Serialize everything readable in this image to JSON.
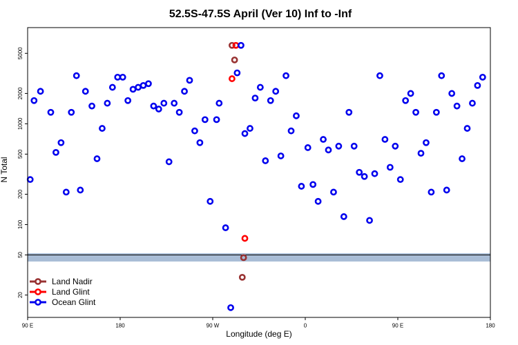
{
  "chart_data": {
    "type": "scatter",
    "title": "52.5S-47.5S April (Ver 10)   Inf to -Inf",
    "xlabel": "Longitude (deg E)",
    "ylabel": "N Total",
    "xlim": [
      0,
      360
    ],
    "ylim_log": [
      12,
      9000
    ],
    "y_scale": "log",
    "x_ticks": [
      {
        "x": 0,
        "label": "90 E"
      },
      {
        "x": 72,
        "label": "180"
      },
      {
        "x": 144,
        "label": "90 W"
      },
      {
        "x": 216,
        "label": "0"
      },
      {
        "x": 288,
        "label": "90 E"
      },
      {
        "x": 360,
        "label": "180"
      }
    ],
    "y_ticks": [
      {
        "y": 20,
        "label": "20"
      },
      {
        "y": 50,
        "label": "50"
      },
      {
        "y": 100,
        "label": "100"
      },
      {
        "y": 200,
        "label": "200"
      },
      {
        "y": 500,
        "label": "500"
      },
      {
        "y": 1000,
        "label": "1000"
      },
      {
        "y": 2000,
        "label": "2000"
      },
      {
        "y": 5000,
        "label": "5000"
      }
    ],
    "band": {
      "y_low": 43,
      "y_high": 52,
      "color": "#a9bdd6"
    },
    "threshold_line": 50,
    "series": [
      {
        "name": "Land Nadir",
        "color": "#993333",
        "points": [
          [
            159,
            6000
          ],
          [
            161,
            4300
          ],
          [
            168,
            47
          ],
          [
            167,
            30
          ]
        ]
      },
      {
        "name": "Land Glint",
        "color": "#ff0000",
        "points": [
          [
            159,
            2800
          ],
          [
            162,
            6000
          ],
          [
            169,
            73
          ]
        ]
      },
      {
        "name": "Ocean Glint",
        "color": "#0000ee",
        "points": [
          [
            2,
            280
          ],
          [
            5,
            1700
          ],
          [
            10,
            2100
          ],
          [
            18,
            1300
          ],
          [
            22,
            520
          ],
          [
            26,
            650
          ],
          [
            30,
            210
          ],
          [
            34,
            1300
          ],
          [
            38,
            3000
          ],
          [
            41,
            220
          ],
          [
            45,
            2100
          ],
          [
            50,
            1500
          ],
          [
            54,
            450
          ],
          [
            58,
            900
          ],
          [
            62,
            1600
          ],
          [
            66,
            2300
          ],
          [
            70,
            2900
          ],
          [
            74,
            2900
          ],
          [
            78,
            1700
          ],
          [
            82,
            2200
          ],
          [
            86,
            2300
          ],
          [
            90,
            2400
          ],
          [
            94,
            2500
          ],
          [
            98,
            1500
          ],
          [
            102,
            1400
          ],
          [
            106,
            1600
          ],
          [
            110,
            420
          ],
          [
            114,
            1600
          ],
          [
            118,
            1300
          ],
          [
            122,
            2100
          ],
          [
            126,
            2700
          ],
          [
            130,
            850
          ],
          [
            134,
            650
          ],
          [
            138,
            1100
          ],
          [
            142,
            170
          ],
          [
            147,
            1100
          ],
          [
            149,
            1600
          ],
          [
            154,
            93
          ],
          [
            158,
            15
          ],
          [
            163,
            3200
          ],
          [
            166,
            6000
          ],
          [
            169,
            800
          ],
          [
            173,
            900
          ],
          [
            177,
            1800
          ],
          [
            181,
            2300
          ],
          [
            185,
            430
          ],
          [
            189,
            1700
          ],
          [
            193,
            2100
          ],
          [
            197,
            480
          ],
          [
            201,
            3000
          ],
          [
            205,
            850
          ],
          [
            209,
            1200
          ],
          [
            213,
            240
          ],
          [
            218,
            580
          ],
          [
            222,
            250
          ],
          [
            226,
            170
          ],
          [
            230,
            700
          ],
          [
            234,
            550
          ],
          [
            238,
            210
          ],
          [
            242,
            600
          ],
          [
            246,
            120
          ],
          [
            250,
            1300
          ],
          [
            254,
            600
          ],
          [
            258,
            330
          ],
          [
            262,
            300
          ],
          [
            266,
            110
          ],
          [
            270,
            320
          ],
          [
            274,
            3000
          ],
          [
            278,
            700
          ],
          [
            282,
            370
          ],
          [
            286,
            600
          ],
          [
            290,
            280
          ],
          [
            294,
            1700
          ],
          [
            298,
            2000
          ],
          [
            302,
            1300
          ],
          [
            306,
            510
          ],
          [
            310,
            650
          ],
          [
            314,
            210
          ],
          [
            318,
            1300
          ],
          [
            322,
            3000
          ],
          [
            326,
            220
          ],
          [
            330,
            2000
          ],
          [
            334,
            1500
          ],
          [
            338,
            450
          ],
          [
            342,
            900
          ],
          [
            346,
            1600
          ],
          [
            350,
            2400
          ],
          [
            354,
            2900
          ]
        ]
      }
    ],
    "legend_position": "bottom-left"
  }
}
